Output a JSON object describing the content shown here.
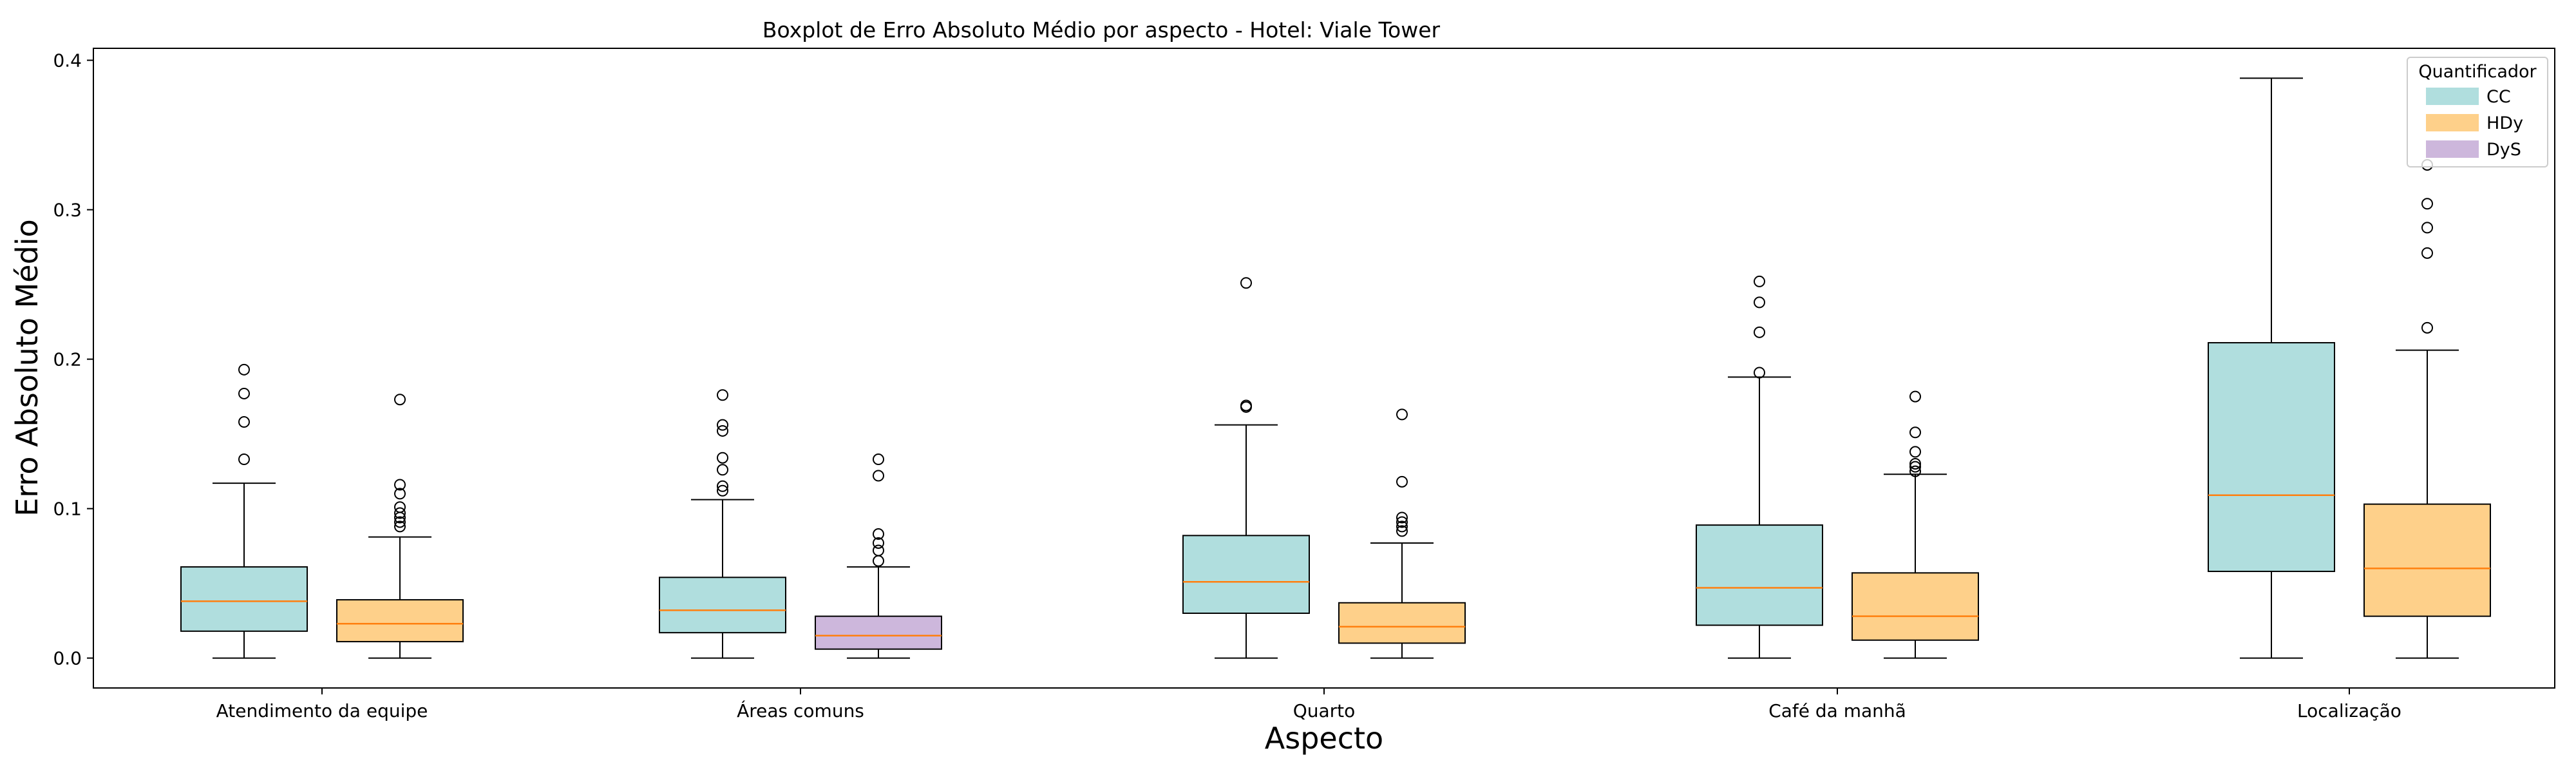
{
  "chart_data": {
    "type": "boxplot",
    "title": "Boxplot de Erro Absoluto Médio por aspecto - Hotel: Viale Tower",
    "xlabel": "Aspecto",
    "ylabel": "Erro Absoluto Médio",
    "ylim": [
      -0.02,
      0.408
    ],
    "yticks": [
      "0.0",
      "0.1",
      "0.2",
      "0.3",
      "0.4"
    ],
    "grid": false,
    "legend": {
      "title": "Quantificador",
      "placement": "top-right",
      "entries": [
        {
          "name": "CC",
          "color": "#b0dede"
        },
        {
          "name": "HDy",
          "color": "#fed08a"
        },
        {
          "name": "DyS",
          "color": "#cdb7dc"
        }
      ]
    },
    "colors": {
      "CC": "#b0dede",
      "HDy": "#fed08a",
      "DyS": "#cdb7dc",
      "median": "#ff7f0e"
    },
    "categories": [
      "Atendimento da equipe",
      "Áreas comuns",
      "Quarto",
      "Café da manhã",
      "Localização"
    ],
    "boxes": [
      {
        "category": "Atendimento da equipe",
        "method": "CC",
        "whislo": 0.0,
        "q1": 0.018,
        "med": 0.038,
        "q3": 0.061,
        "whishi": 0.117,
        "fliers": [
          0.133,
          0.158,
          0.177,
          0.193
        ]
      },
      {
        "category": "Atendimento da equipe",
        "method": "HDy",
        "whislo": 0.0,
        "q1": 0.011,
        "med": 0.023,
        "q3": 0.039,
        "whishi": 0.081,
        "fliers": [
          0.088,
          0.091,
          0.094,
          0.097,
          0.101,
          0.11,
          0.116,
          0.173
        ]
      },
      {
        "category": "Áreas comuns",
        "method": "CC",
        "whislo": 0.0,
        "q1": 0.017,
        "med": 0.032,
        "q3": 0.054,
        "whishi": 0.106,
        "fliers": [
          0.112,
          0.115,
          0.126,
          0.134,
          0.152,
          0.156,
          0.176
        ]
      },
      {
        "category": "Áreas comuns",
        "method": "DyS",
        "whislo": 0.0,
        "q1": 0.006,
        "med": 0.015,
        "q3": 0.028,
        "whishi": 0.061,
        "fliers": [
          0.065,
          0.072,
          0.077,
          0.083,
          0.122,
          0.133
        ]
      },
      {
        "category": "Quarto",
        "method": "CC",
        "whislo": 0.0,
        "q1": 0.03,
        "med": 0.051,
        "q3": 0.082,
        "whishi": 0.156,
        "fliers": [
          0.168,
          0.169,
          0.251
        ]
      },
      {
        "category": "Quarto",
        "method": "HDy",
        "whislo": 0.0,
        "q1": 0.01,
        "med": 0.021,
        "q3": 0.037,
        "whishi": 0.077,
        "fliers": [
          0.085,
          0.088,
          0.091,
          0.094,
          0.118,
          0.163
        ]
      },
      {
        "category": "Café da manhã",
        "method": "CC",
        "whislo": 0.0,
        "q1": 0.022,
        "med": 0.047,
        "q3": 0.089,
        "whishi": 0.188,
        "fliers": [
          0.191,
          0.218,
          0.238,
          0.252
        ]
      },
      {
        "category": "Café da manhã",
        "method": "HDy",
        "whislo": 0.0,
        "q1": 0.012,
        "med": 0.028,
        "q3": 0.057,
        "whishi": 0.123,
        "fliers": [
          0.125,
          0.128,
          0.13,
          0.138,
          0.151,
          0.175
        ]
      },
      {
        "category": "Localização",
        "method": "CC",
        "whislo": 0.0,
        "q1": 0.058,
        "med": 0.109,
        "q3": 0.211,
        "whishi": 0.388,
        "fliers": []
      },
      {
        "category": "Localização",
        "method": "HDy",
        "whislo": 0.0,
        "q1": 0.028,
        "med": 0.06,
        "q3": 0.103,
        "whishi": 0.206,
        "fliers": [
          0.221,
          0.271,
          0.288,
          0.304,
          0.33
        ]
      }
    ]
  }
}
